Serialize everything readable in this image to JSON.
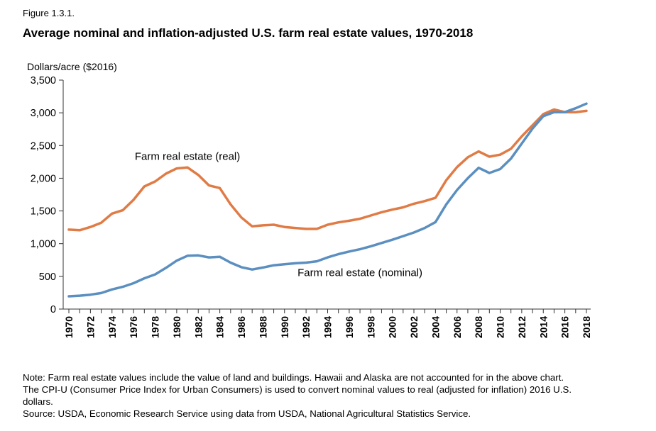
{
  "figure_label": "Figure 1.3.1.",
  "chart_data": {
    "type": "line",
    "title": "Average nominal and inflation-adjusted U.S. farm real estate values, 1970-2018",
    "ylabel": "Dollars/acre ($2016)",
    "xlabel": "",
    "ylim": [
      0,
      3500
    ],
    "yticks": [
      0,
      500,
      1000,
      1500,
      2000,
      2500,
      3000,
      3500
    ],
    "ytick_labels": [
      "0",
      "500",
      "1,000",
      "1,500",
      "2,000",
      "2,500",
      "3,000",
      "3,500"
    ],
    "xlim": [
      1970,
      2018
    ],
    "xtick_labels": [
      "1970",
      "1972",
      "1974",
      "1976",
      "1978",
      "1980",
      "1982",
      "1984",
      "1986",
      "1988",
      "1990",
      "1992",
      "1994",
      "1996",
      "1998",
      "2000",
      "2002",
      "2004",
      "2006",
      "2008",
      "2010",
      "2012",
      "2014",
      "2016",
      "2018"
    ],
    "grid": false,
    "x": [
      1970,
      1971,
      1972,
      1973,
      1974,
      1975,
      1976,
      1977,
      1978,
      1979,
      1980,
      1981,
      1982,
      1983,
      1984,
      1985,
      1986,
      1987,
      1988,
      1989,
      1990,
      1991,
      1992,
      1993,
      1994,
      1995,
      1996,
      1997,
      1998,
      1999,
      2000,
      2001,
      2002,
      2003,
      2004,
      2005,
      2006,
      2007,
      2008,
      2009,
      2010,
      2011,
      2012,
      2013,
      2014,
      2015,
      2016,
      2017,
      2018
    ],
    "series": [
      {
        "name": "Farm real estate (real)",
        "color": "#e07b45",
        "values": [
          1215,
          1205,
          1255,
          1320,
          1460,
          1510,
          1670,
          1875,
          1950,
          2070,
          2150,
          2165,
          2050,
          1890,
          1850,
          1600,
          1400,
          1265,
          1280,
          1290,
          1255,
          1240,
          1225,
          1225,
          1290,
          1325,
          1350,
          1380,
          1430,
          1480,
          1520,
          1555,
          1610,
          1650,
          1700,
          1970,
          2170,
          2320,
          2410,
          2330,
          2360,
          2450,
          2640,
          2810,
          2980,
          3050,
          3010,
          3010,
          3030
        ]
      },
      {
        "name": "Farm real estate (nominal)",
        "color": "#5b8fc0",
        "values": [
          195,
          205,
          220,
          245,
          300,
          340,
          395,
          470,
          530,
          630,
          740,
          815,
          820,
          790,
          800,
          710,
          640,
          605,
          635,
          670,
          685,
          700,
          710,
          730,
          790,
          840,
          880,
          915,
          960,
          1010,
          1060,
          1115,
          1170,
          1240,
          1330,
          1600,
          1820,
          2000,
          2160,
          2080,
          2140,
          2300,
          2530,
          2760,
          2950,
          3010,
          3010,
          3070,
          3140
        ]
      }
    ],
    "annotations": [
      {
        "text": "Farm real estate (real)",
        "x": 1981,
        "y": 2280
      },
      {
        "text": "Farm real estate (nominal)",
        "x": 1997,
        "y": 505
      }
    ]
  },
  "notes": {
    "line1": "Note: Farm real estate values include the value of land and buildings. Hawaii and Alaska are not accounted for in the above chart.",
    "line2": "The CPI-U (Consumer Price Index for Urban Consumers) is used to convert nominal values to real (adjusted for inflation) 2016 U.S.",
    "line3": "dollars.",
    "line4": "Source: USDA, Economic Research Service using data from USDA, National Agricultural Statistics Service."
  }
}
